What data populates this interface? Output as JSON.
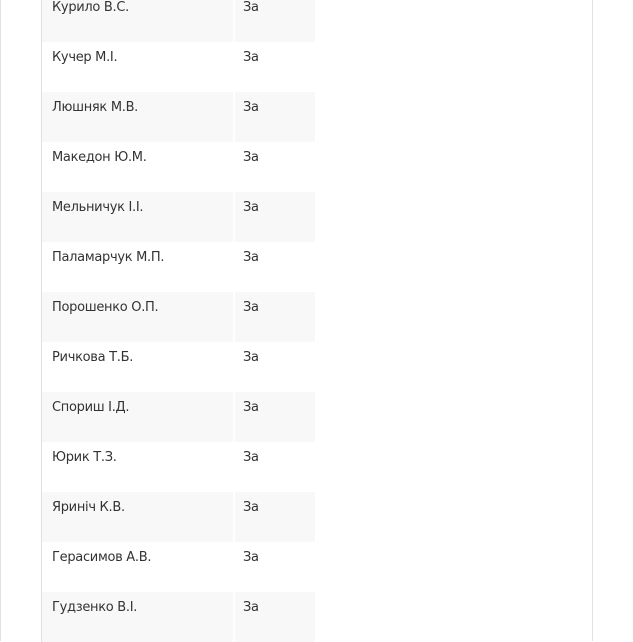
{
  "votes": [
    {
      "name": "Курило В.С.",
      "vote": "За"
    },
    {
      "name": "Кучер М.І.",
      "vote": "За"
    },
    {
      "name": "Люшняк М.В.",
      "vote": "За"
    },
    {
      "name": "Македон Ю.М.",
      "vote": "За"
    },
    {
      "name": "Мельничук І.І.",
      "vote": "За"
    },
    {
      "name": "Паламарчук М.П.",
      "vote": "За"
    },
    {
      "name": "Порошенко О.П.",
      "vote": "За"
    },
    {
      "name": "Ричкова Т.Б.",
      "vote": "За"
    },
    {
      "name": "Спориш І.Д.",
      "vote": "За"
    },
    {
      "name": "Юрик Т.З.",
      "vote": "За"
    },
    {
      "name": "Яриніч К.В.",
      "vote": "За"
    },
    {
      "name": "Герасимов А.В.",
      "vote": "За"
    },
    {
      "name": "Гудзенко В.І.",
      "vote": "За"
    }
  ]
}
